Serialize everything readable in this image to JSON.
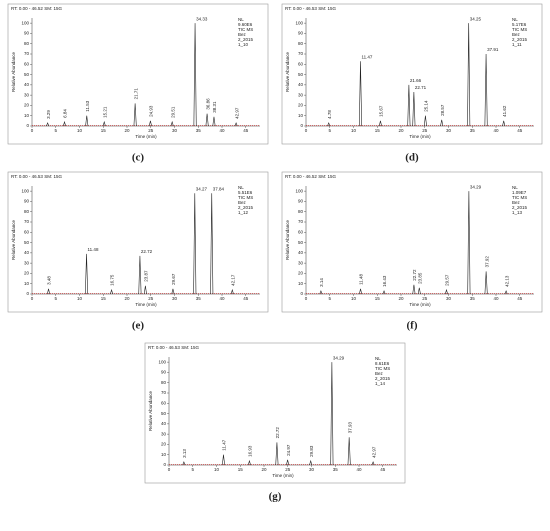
{
  "chart_data": [
    {
      "type": "chromatogram",
      "label": "(c)",
      "header": "RT: 0.00 - 46.52   SM: 15G",
      "info": [
        "NL",
        "9.60E6",
        "TIC MS",
        "Bez",
        "2_2015",
        "1_10"
      ],
      "x_label": "Time (min)",
      "y_label": "Relative Abundance",
      "color": "#222222",
      "x": [
        3.29,
        6.84,
        11.53,
        15.21,
        21.71,
        24.93,
        29.51,
        34.33,
        36.86,
        38.31,
        42.97
      ],
      "values": [
        3,
        4,
        10,
        4,
        22,
        5,
        4,
        100,
        12,
        9,
        3
      ],
      "xlim": [
        0,
        48
      ],
      "ylim": [
        0,
        105
      ],
      "xticks": [
        0,
        5,
        10,
        15,
        20,
        25,
        30,
        35,
        40,
        45
      ],
      "yticks": [
        0,
        10,
        20,
        30,
        40,
        50,
        60,
        70,
        80,
        90,
        100
      ]
    },
    {
      "type": "chromatogram",
      "label": "(d)",
      "header": "RT: 0.00 - 46.53   SM: 15G",
      "info": [
        "NL",
        "5.17E6",
        "TIC MS",
        "Bez",
        "2_2015",
        "1_11"
      ],
      "x_label": "Time (min)",
      "y_label": "Relative Abundance",
      "color": "#222222",
      "x": [
        4.78,
        11.47,
        15.67,
        21.66,
        22.71,
        25.14,
        28.57,
        34.25,
        37.91,
        41.62
      ],
      "values": [
        3,
        63,
        5,
        40,
        33,
        10,
        6,
        100,
        70,
        5
      ],
      "xlim": [
        0,
        48
      ],
      "ylim": [
        0,
        105
      ],
      "xticks": [
        0,
        5,
        10,
        15,
        20,
        25,
        30,
        35,
        40,
        45
      ],
      "yticks": [
        0,
        10,
        20,
        30,
        40,
        50,
        60,
        70,
        80,
        90,
        100
      ]
    },
    {
      "type": "chromatogram",
      "label": "(e)",
      "header": "RT: 0.00 - 46.53   SM: 15G",
      "info": [
        "NL",
        "5.51E6",
        "TIC MS",
        "Bez",
        "2_2015",
        "1_12"
      ],
      "x_label": "Time (min)",
      "y_label": "Relative Abundance",
      "color": "#222222",
      "x": [
        3.48,
        11.48,
        16.75,
        22.72,
        23.87,
        29.67,
        34.27,
        37.84,
        42.17
      ],
      "values": [
        5,
        39,
        4,
        37,
        8,
        5,
        98,
        98,
        4
      ],
      "xlim": [
        0,
        48
      ],
      "ylim": [
        0,
        105
      ],
      "xticks": [
        0,
        5,
        10,
        15,
        20,
        25,
        30,
        35,
        40,
        45
      ],
      "yticks": [
        0,
        10,
        20,
        30,
        40,
        50,
        60,
        70,
        80,
        90,
        100
      ]
    },
    {
      "type": "chromatogram",
      "label": "(f)",
      "header": "RT: 0.00 - 46.52   SM: 15G",
      "info": [
        "NL",
        "1.09E7",
        "TIC MS",
        "Bez",
        "2_2015",
        "1_13"
      ],
      "x_label": "Time (min)",
      "y_label": "Relative Abundance",
      "color": "#222222",
      "x": [
        3.14,
        11.48,
        16.43,
        22.72,
        23.85,
        29.57,
        34.29,
        37.92,
        42.13
      ],
      "values": [
        3,
        5,
        3,
        9,
        6,
        4,
        100,
        22,
        3
      ],
      "xlim": [
        0,
        48
      ],
      "ylim": [
        0,
        105
      ],
      "xticks": [
        0,
        5,
        10,
        15,
        20,
        25,
        30,
        35,
        40,
        45
      ],
      "yticks": [
        0,
        10,
        20,
        30,
        40,
        50,
        60,
        70,
        80,
        90,
        100
      ]
    },
    {
      "type": "chromatogram",
      "label": "(g)",
      "header": "RT: 0.00 - 46.53   SM: 15G",
      "info": [
        "NL",
        "8.61E6",
        "TIC MS",
        "Bez",
        "2_2015",
        "1_14"
      ],
      "x_label": "Time (min)",
      "y_label": "Relative Abundance",
      "color": "#222222",
      "x": [
        3.13,
        11.47,
        16.93,
        22.72,
        24.97,
        29.83,
        34.29,
        37.93,
        42.97
      ],
      "values": [
        3,
        10,
        4,
        22,
        5,
        4,
        100,
        27,
        3
      ],
      "xlim": [
        0,
        48
      ],
      "ylim": [
        0,
        105
      ],
      "xticks": [
        0,
        5,
        10,
        15,
        20,
        25,
        30,
        35,
        40,
        45
      ],
      "yticks": [
        0,
        10,
        20,
        30,
        40,
        50,
        60,
        70,
        80,
        90,
        100
      ]
    }
  ]
}
